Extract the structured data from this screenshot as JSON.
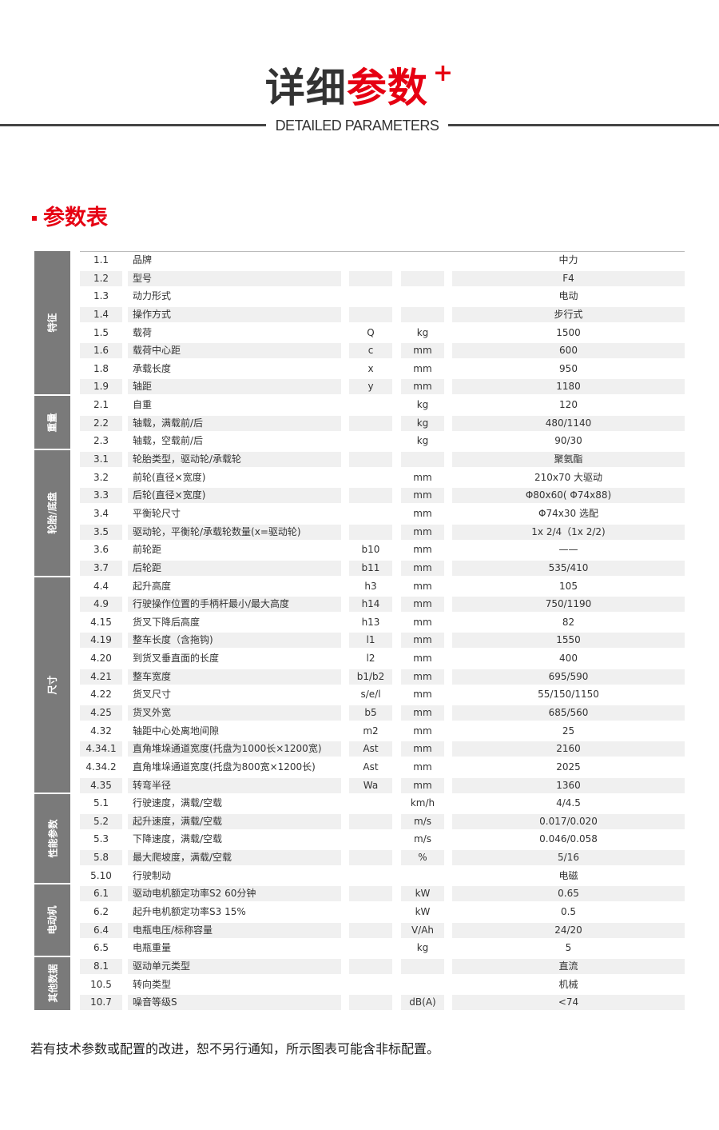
{
  "header": {
    "title_dark": "详细",
    "title_red": "参数",
    "plus": "+",
    "subtitle": "DETAILED PARAMETERS"
  },
  "section": {
    "title": "参数表"
  },
  "colors": {
    "accent": "#e60012",
    "group_bg": "#7a7a7a",
    "shade": "#f0f0f0"
  },
  "groups": [
    {
      "label": "特征",
      "rows": 8
    },
    {
      "label": "重量",
      "rows": 3
    },
    {
      "label": "轮胎/底盘",
      "rows": 7
    },
    {
      "label": "尺寸",
      "rows": 12
    },
    {
      "label": "性能参数",
      "rows": 5
    },
    {
      "label": "电动机",
      "rows": 4
    },
    {
      "label": "其他数据",
      "rows": 3
    }
  ],
  "rows": [
    [
      "1.1",
      "品牌",
      "",
      "",
      "中力"
    ],
    [
      "1.2",
      "型号",
      "",
      "",
      "F4"
    ],
    [
      "1.3",
      "动力形式",
      "",
      "",
      "电动"
    ],
    [
      "1.4",
      "操作方式",
      "",
      "",
      "步行式"
    ],
    [
      "1.5",
      "载荷",
      "Q",
      "kg",
      "1500"
    ],
    [
      "1.6",
      "载荷中心距",
      "c",
      "mm",
      "600"
    ],
    [
      "1.8",
      "承载长度",
      "x",
      "mm",
      "950"
    ],
    [
      "1.9",
      "轴距",
      "y",
      "mm",
      "1180"
    ],
    [
      "2.1",
      "自重",
      "",
      "kg",
      "120"
    ],
    [
      "2.2",
      "轴载，满载前/后",
      "",
      "kg",
      "480/1140"
    ],
    [
      "2.3",
      "轴载，空载前/后",
      "",
      "kg",
      "90/30"
    ],
    [
      "3.1",
      "轮胎类型，驱动轮/承载轮",
      "",
      "",
      "聚氨酯"
    ],
    [
      "3.2",
      "前轮(直径×宽度)",
      "",
      "mm",
      "210x70 大驱动"
    ],
    [
      "3.3",
      "后轮(直径×宽度)",
      "",
      "mm",
      "Φ80x60( Φ74x88)"
    ],
    [
      "3.4",
      "平衡轮尺寸",
      "",
      "mm",
      "Φ74x30 选配"
    ],
    [
      "3.5",
      "驱动轮，平衡轮/承载轮数量(x=驱动轮)",
      "",
      "mm",
      "1x 2/4（1x 2/2)"
    ],
    [
      "3.6",
      "前轮距",
      "b10",
      "mm",
      "——"
    ],
    [
      "3.7",
      "后轮距",
      "b11",
      "mm",
      "535/410"
    ],
    [
      "4.4",
      "起升高度",
      "h3",
      "mm",
      "105"
    ],
    [
      "4.9",
      "行驶操作位置的手柄杆最小/最大高度",
      "h14",
      "mm",
      "750/1190"
    ],
    [
      "4.15",
      "货叉下降后高度",
      "h13",
      "mm",
      "82"
    ],
    [
      "4.19",
      "整车长度（含拖钩)",
      "l1",
      "mm",
      "1550"
    ],
    [
      "4.20",
      "到货叉垂直面的长度",
      "l2",
      "mm",
      "400"
    ],
    [
      "4.21",
      "整车宽度",
      "b1/b2",
      "mm",
      "695/590"
    ],
    [
      "4.22",
      "货叉尺寸",
      "s/e/l",
      "mm",
      "55/150/1150"
    ],
    [
      "4.25",
      "货叉外宽",
      "b5",
      "mm",
      "685/560"
    ],
    [
      "4.32",
      "轴距中心处离地间隙",
      "m2",
      "mm",
      "25"
    ],
    [
      "4.34.1",
      "直角堆垛通道宽度(托盘为1000长×1200宽)",
      "Ast",
      "mm",
      "2160"
    ],
    [
      "4.34.2",
      "直角堆垛通道宽度(托盘为800宽×1200长)",
      "Ast",
      "mm",
      "2025"
    ],
    [
      "4.35",
      "转弯半径",
      "Wa",
      "mm",
      "1360"
    ],
    [
      "5.1",
      "行驶速度，满载/空载",
      "",
      "km/h",
      "4/4.5"
    ],
    [
      "5.2",
      "起升速度，满载/空载",
      "",
      "m/s",
      "0.017/0.020"
    ],
    [
      "5.3",
      "下降速度，满载/空载",
      "",
      "m/s",
      "0.046/0.058"
    ],
    [
      "5.8",
      "最大爬坡度，满载/空载",
      "",
      "%",
      "5/16"
    ],
    [
      "5.10",
      "行驶制动",
      "",
      "",
      "电磁"
    ],
    [
      "6.1",
      "驱动电机额定功率S2 60分钟",
      "",
      "kW",
      "0.65"
    ],
    [
      "6.2",
      "起升电机额定功率S3 15%",
      "",
      "kW",
      "0.5"
    ],
    [
      "6.4",
      "电瓶电压/标称容量",
      "",
      "V/Ah",
      "24/20"
    ],
    [
      "6.5",
      "电瓶重量",
      "",
      "kg",
      "5"
    ],
    [
      "8.1",
      "驱动单元类型",
      "",
      "",
      "直流"
    ],
    [
      "10.5",
      "转向类型",
      "",
      "",
      "机械"
    ],
    [
      "10.7",
      "噪音等级S",
      "",
      "dB(A)",
      "<74"
    ]
  ],
  "footnote": "若有技术参数或配置的改进，恕不另行通知，所示图表可能含非标配置。"
}
